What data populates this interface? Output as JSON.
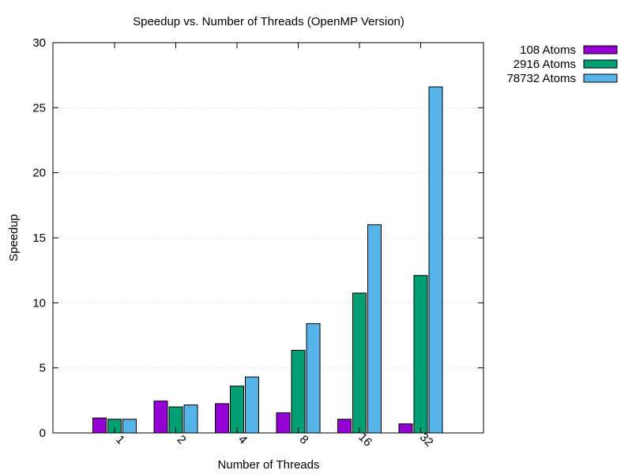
{
  "chart_data": {
    "type": "bar",
    "title": "Speedup vs. Number of Threads (OpenMP Version)",
    "xlabel": "Number of Threads",
    "ylabel": "Speedup",
    "categories": [
      "1",
      "2",
      "4",
      "8",
      "16",
      "32"
    ],
    "ylim": [
      0,
      30
    ],
    "yticks": [
      "0",
      "5",
      "10",
      "15",
      "20",
      "25",
      "30"
    ],
    "grid": true,
    "legend_position": "outside-top-right",
    "series": [
      {
        "name": "108 Atoms",
        "color": "#9400d3",
        "values": [
          1.15,
          2.45,
          2.25,
          1.55,
          1.05,
          0.7
        ]
      },
      {
        "name": "2916 Atoms",
        "color": "#009e73",
        "values": [
          1.05,
          2.0,
          3.6,
          6.35,
          10.75,
          12.1
        ]
      },
      {
        "name": "78732 Atoms",
        "color": "#56b4e9",
        "values": [
          1.05,
          2.15,
          4.3,
          8.4,
          16.0,
          26.6
        ]
      }
    ]
  }
}
